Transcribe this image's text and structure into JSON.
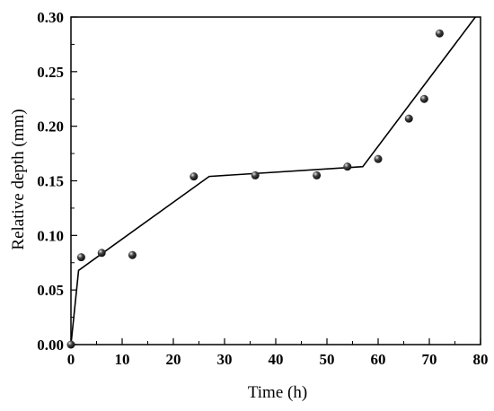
{
  "chart_data": {
    "type": "scatter",
    "title": "",
    "xlabel": "Time (h)",
    "ylabel": "Relative depth (mm)",
    "xlim": [
      0,
      80
    ],
    "ylim": [
      0,
      0.3
    ],
    "x_ticks": [
      "0",
      "10",
      "20",
      "30",
      "40",
      "50",
      "60",
      "70",
      "80"
    ],
    "y_ticks": [
      "0.00",
      "0.05",
      "0.10",
      "0.15",
      "0.20",
      "0.25",
      "0.30"
    ],
    "grid": false,
    "legend": "none",
    "series": [
      {
        "type": "scatter",
        "x": [
          0,
          2,
          6,
          12,
          24,
          36,
          48,
          54,
          60,
          66,
          69,
          72
        ],
        "y": [
          0.0,
          0.08,
          0.084,
          0.082,
          0.154,
          0.155,
          0.155,
          0.163,
          0.17,
          0.207,
          0.225,
          0.285
        ]
      },
      {
        "type": "line",
        "x": [
          0,
          1.5,
          27,
          57,
          79
        ],
        "y": [
          0.0,
          0.068,
          0.154,
          0.163,
          0.3
        ]
      }
    ],
    "colors": {
      "points": "#111111",
      "line": "#000000",
      "axis": "#000000"
    }
  }
}
